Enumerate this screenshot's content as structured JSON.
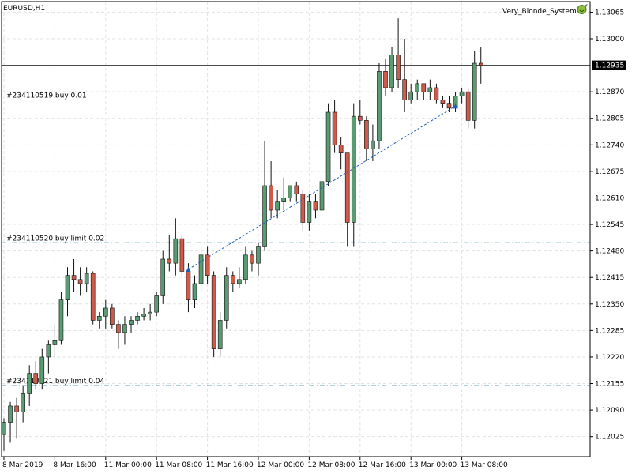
{
  "symbol_label": "EURUSD,H1",
  "expert_name": "Very_Blonde_System",
  "colors": {
    "bull": "#5a9c72",
    "bear": "#d05a4a",
    "wick": "#111111",
    "grid": "#e3e3e3",
    "order_line": "#2e86ab",
    "price_line": "#333333",
    "trade_line": "#1f5fb5",
    "axis": "#000000"
  },
  "chart_data": {
    "type": "candlestick",
    "timeframe": "H1",
    "x_labels": [
      "8 Mar 2019",
      "8 Mar 16:00",
      "11 Mar 00:00",
      "11 Mar 08:00",
      "11 Mar 16:00",
      "12 Mar 00:00",
      "12 Mar 08:00",
      "12 Mar 16:00",
      "13 Mar 00:00",
      "13 Mar 08:00"
    ],
    "y_ticks": [
      1.13065,
      1.13,
      1.1287,
      1.12805,
      1.1274,
      1.12675,
      1.1261,
      1.12545,
      1.1248,
      1.12415,
      1.1235,
      1.12285,
      1.1222,
      1.12155,
      1.1209,
      1.12025
    ],
    "y_range": [
      1.11976,
      1.13091
    ],
    "current_price": 1.12935,
    "current_price_label": "1.12935",
    "grid": true,
    "orders": [
      {
        "label": "#234110519 buy 0.01",
        "price": 1.1285
      },
      {
        "label": "#234110520 buy limit 0.02",
        "price": 1.125
      },
      {
        "label": "#234110521 buy limit 0.04",
        "price": 1.1215
      }
    ],
    "trade_line": {
      "from_index": 29,
      "from_price": 1.12435,
      "to_index": 71,
      "to_price": 1.12835
    },
    "candles": [
      {
        "o": 1.1203,
        "h": 1.1207,
        "l": 1.1199,
        "c": 1.1206
      },
      {
        "o": 1.1206,
        "h": 1.1211,
        "l": 1.1201,
        "c": 1.121
      },
      {
        "o": 1.121,
        "h": 1.1212,
        "l": 1.1202,
        "c": 1.12085
      },
      {
        "o": 1.12085,
        "h": 1.1215,
        "l": 1.1206,
        "c": 1.1213
      },
      {
        "o": 1.1213,
        "h": 1.122,
        "l": 1.121,
        "c": 1.1218
      },
      {
        "o": 1.1218,
        "h": 1.1221,
        "l": 1.1214,
        "c": 1.12155
      },
      {
        "o": 1.12155,
        "h": 1.1224,
        "l": 1.1214,
        "c": 1.1222
      },
      {
        "o": 1.1222,
        "h": 1.1226,
        "l": 1.1218,
        "c": 1.1225
      },
      {
        "o": 1.1225,
        "h": 1.123,
        "l": 1.1222,
        "c": 1.1226
      },
      {
        "o": 1.1226,
        "h": 1.1238,
        "l": 1.1225,
        "c": 1.1236
      },
      {
        "o": 1.1236,
        "h": 1.1244,
        "l": 1.1232,
        "c": 1.1242
      },
      {
        "o": 1.1242,
        "h": 1.1246,
        "l": 1.1238,
        "c": 1.1241
      },
      {
        "o": 1.1241,
        "h": 1.1244,
        "l": 1.1237,
        "c": 1.124
      },
      {
        "o": 1.124,
        "h": 1.1244,
        "l": 1.1238,
        "c": 1.12425
      },
      {
        "o": 1.12425,
        "h": 1.1243,
        "l": 1.123,
        "c": 1.1231
      },
      {
        "o": 1.1231,
        "h": 1.1233,
        "l": 1.1229,
        "c": 1.1232
      },
      {
        "o": 1.1232,
        "h": 1.1236,
        "l": 1.1229,
        "c": 1.1234
      },
      {
        "o": 1.1234,
        "h": 1.1235,
        "l": 1.1229,
        "c": 1.123
      },
      {
        "o": 1.123,
        "h": 1.1231,
        "l": 1.1224,
        "c": 1.1228
      },
      {
        "o": 1.1228,
        "h": 1.1232,
        "l": 1.1225,
        "c": 1.123
      },
      {
        "o": 1.123,
        "h": 1.1232,
        "l": 1.1228,
        "c": 1.1231
      },
      {
        "o": 1.1231,
        "h": 1.1233,
        "l": 1.123,
        "c": 1.1232
      },
      {
        "o": 1.1232,
        "h": 1.1234,
        "l": 1.1231,
        "c": 1.12325
      },
      {
        "o": 1.12325,
        "h": 1.1235,
        "l": 1.1231,
        "c": 1.1233
      },
      {
        "o": 1.1233,
        "h": 1.1238,
        "l": 1.1232,
        "c": 1.1237
      },
      {
        "o": 1.1237,
        "h": 1.1248,
        "l": 1.1235,
        "c": 1.1246
      },
      {
        "o": 1.1246,
        "h": 1.1252,
        "l": 1.1243,
        "c": 1.1245
      },
      {
        "o": 1.1245,
        "h": 1.1256,
        "l": 1.1242,
        "c": 1.1251
      },
      {
        "o": 1.1251,
        "h": 1.1252,
        "l": 1.1242,
        "c": 1.1243
      },
      {
        "o": 1.1243,
        "h": 1.1245,
        "l": 1.1233,
        "c": 1.1236
      },
      {
        "o": 1.1236,
        "h": 1.1242,
        "l": 1.1234,
        "c": 1.124
      },
      {
        "o": 1.124,
        "h": 1.1249,
        "l": 1.1238,
        "c": 1.1247
      },
      {
        "o": 1.1247,
        "h": 1.1249,
        "l": 1.124,
        "c": 1.1242
      },
      {
        "o": 1.1242,
        "h": 1.1243,
        "l": 1.1222,
        "c": 1.1224
      },
      {
        "o": 1.1224,
        "h": 1.1233,
        "l": 1.1222,
        "c": 1.1231
      },
      {
        "o": 1.1231,
        "h": 1.1244,
        "l": 1.1229,
        "c": 1.1242
      },
      {
        "o": 1.1242,
        "h": 1.1243,
        "l": 1.1238,
        "c": 1.124
      },
      {
        "o": 1.124,
        "h": 1.1244,
        "l": 1.1239,
        "c": 1.1241
      },
      {
        "o": 1.1241,
        "h": 1.1249,
        "l": 1.124,
        "c": 1.1247
      },
      {
        "o": 1.1247,
        "h": 1.1248,
        "l": 1.1243,
        "c": 1.1245
      },
      {
        "o": 1.1245,
        "h": 1.125,
        "l": 1.1242,
        "c": 1.1249
      },
      {
        "o": 1.1249,
        "h": 1.1275,
        "l": 1.1248,
        "c": 1.1264
      },
      {
        "o": 1.1264,
        "h": 1.127,
        "l": 1.1256,
        "c": 1.1258
      },
      {
        "o": 1.1258,
        "h": 1.1263,
        "l": 1.1256,
        "c": 1.126
      },
      {
        "o": 1.126,
        "h": 1.1266,
        "l": 1.1258,
        "c": 1.1261
      },
      {
        "o": 1.1261,
        "h": 1.1264,
        "l": 1.126,
        "c": 1.1264
      },
      {
        "o": 1.1264,
        "h": 1.1265,
        "l": 1.126,
        "c": 1.1262
      },
      {
        "o": 1.1262,
        "h": 1.1263,
        "l": 1.1253,
        "c": 1.1255
      },
      {
        "o": 1.1255,
        "h": 1.1262,
        "l": 1.1253,
        "c": 1.126
      },
      {
        "o": 1.126,
        "h": 1.1262,
        "l": 1.1256,
        "c": 1.1258
      },
      {
        "o": 1.1258,
        "h": 1.1266,
        "l": 1.1257,
        "c": 1.1265
      },
      {
        "o": 1.1265,
        "h": 1.1284,
        "l": 1.1264,
        "c": 1.1282
      },
      {
        "o": 1.1282,
        "h": 1.1285,
        "l": 1.1272,
        "c": 1.1274
      },
      {
        "o": 1.1274,
        "h": 1.1276,
        "l": 1.1268,
        "c": 1.1272
      },
      {
        "o": 1.1272,
        "h": 1.1272,
        "l": 1.1249,
        "c": 1.1255
      },
      {
        "o": 1.1255,
        "h": 1.1284,
        "l": 1.1249,
        "c": 1.1281
      },
      {
        "o": 1.1281,
        "h": 1.1285,
        "l": 1.1279,
        "c": 1.128
      },
      {
        "o": 1.128,
        "h": 1.1281,
        "l": 1.127,
        "c": 1.1273
      },
      {
        "o": 1.1273,
        "h": 1.1279,
        "l": 1.127,
        "c": 1.1275
      },
      {
        "o": 1.1275,
        "h": 1.1294,
        "l": 1.1273,
        "c": 1.1292
      },
      {
        "o": 1.1292,
        "h": 1.1295,
        "l": 1.1286,
        "c": 1.1288
      },
      {
        "o": 1.1288,
        "h": 1.1298,
        "l": 1.1287,
        "c": 1.1296
      },
      {
        "o": 1.1296,
        "h": 1.1305,
        "l": 1.1288,
        "c": 1.129
      },
      {
        "o": 1.129,
        "h": 1.13,
        "l": 1.1282,
        "c": 1.1285
      },
      {
        "o": 1.1285,
        "h": 1.1289,
        "l": 1.1284,
        "c": 1.1287
      },
      {
        "o": 1.1287,
        "h": 1.129,
        "l": 1.1285,
        "c": 1.1289
      },
      {
        "o": 1.1289,
        "h": 1.1289,
        "l": 1.1285,
        "c": 1.1287
      },
      {
        "o": 1.1287,
        "h": 1.129,
        "l": 1.1285,
        "c": 1.1288
      },
      {
        "o": 1.1288,
        "h": 1.1289,
        "l": 1.1284,
        "c": 1.1285
      },
      {
        "o": 1.1285,
        "h": 1.1286,
        "l": 1.1283,
        "c": 1.1284
      },
      {
        "o": 1.1284,
        "h": 1.1286,
        "l": 1.1282,
        "c": 1.1283
      },
      {
        "o": 1.1283,
        "h": 1.1287,
        "l": 1.1282,
        "c": 1.1286
      },
      {
        "o": 1.1286,
        "h": 1.1288,
        "l": 1.1284,
        "c": 1.1287
      },
      {
        "o": 1.1287,
        "h": 1.1288,
        "l": 1.1278,
        "c": 1.128
      },
      {
        "o": 1.128,
        "h": 1.1297,
        "l": 1.1278,
        "c": 1.1294
      },
      {
        "o": 1.1294,
        "h": 1.1298,
        "l": 1.1289,
        "c": 1.12935
      }
    ]
  }
}
